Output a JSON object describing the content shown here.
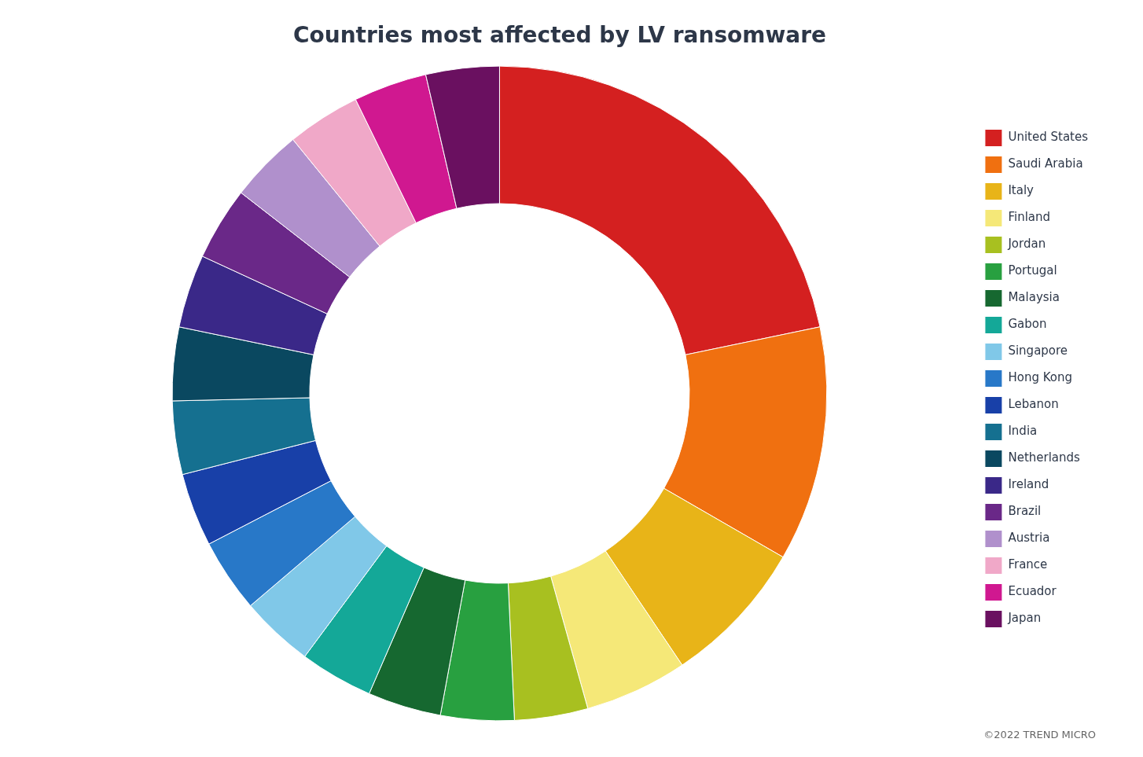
{
  "chart_data": {
    "type": "donut",
    "title": "Countries most affected by LV ransomware",
    "annotation": "©2022 TREND MICRO",
    "categories": [
      "United States",
      "Saudi Arabia",
      "Italy",
      "Finland",
      "Jordan",
      "Portugal",
      "Malaysia",
      "Gabon",
      "Singapore",
      "Hong Kong",
      "Lebanon",
      "India",
      "Netherlands",
      "Ireland",
      "Brazil",
      "Austria",
      "France",
      "Ecuador",
      "Japan"
    ],
    "values": [
      30,
      16,
      10,
      7,
      5,
      5,
      5,
      5,
      5,
      5,
      5,
      5,
      5,
      5,
      5,
      5,
      5,
      5,
      5
    ],
    "colors": [
      "#d42020",
      "#f07010",
      "#e8b418",
      "#f5e878",
      "#a8c020",
      "#28a040",
      "#166830",
      "#14a898",
      "#80c8e8",
      "#2878c8",
      "#1840a8",
      "#157090",
      "#0a4860",
      "#3a2888",
      "#6a2888",
      "#b090cc",
      "#f0a8c8",
      "#d01890",
      "#6a1060"
    ],
    "legend": "right"
  }
}
